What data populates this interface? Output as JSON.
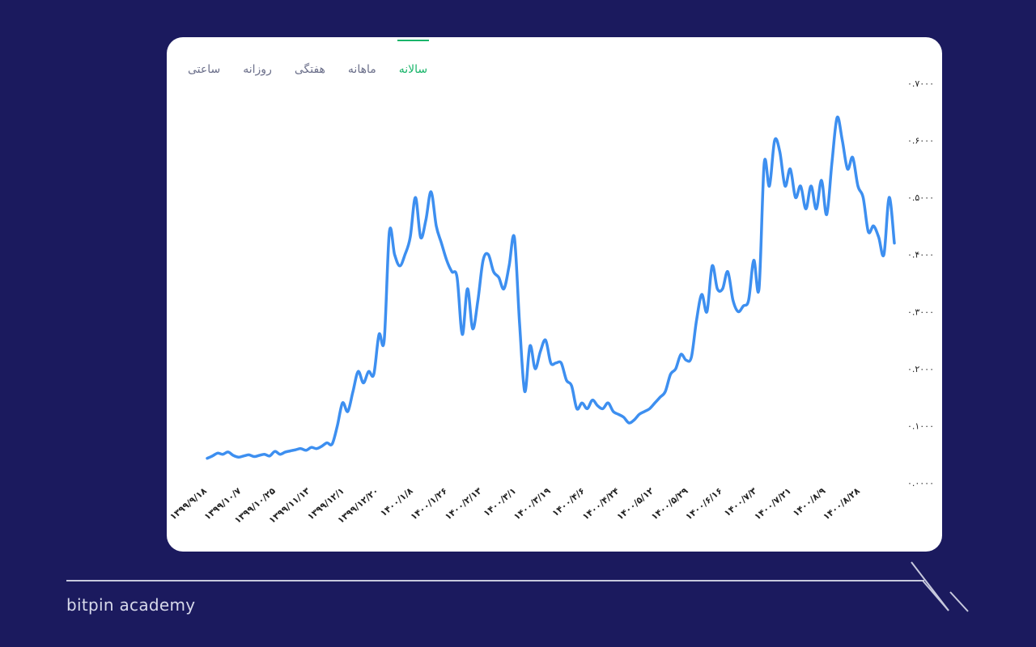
{
  "tabs": [
    {
      "label": "ساعتی",
      "active": false
    },
    {
      "label": "روزانه",
      "active": false
    },
    {
      "label": "هفتگی",
      "active": false
    },
    {
      "label": "ماهانه",
      "active": false
    },
    {
      "label": "سالانه",
      "active": true
    }
  ],
  "brand": "bitpin academy",
  "colors": {
    "background": "#1b1a5e",
    "line": "#3d8ff0",
    "accent": "#19b56a"
  },
  "chart_data": {
    "type": "line",
    "title": "",
    "xlabel": "",
    "ylabel": "",
    "ylim": [
      0,
      0.7
    ],
    "yticks": [
      0,
      0.1,
      0.2,
      0.3,
      0.4,
      0.5,
      0.6,
      0.7
    ],
    "ytick_labels": [
      "۰.۰۰۰۰",
      "۰.۱۰۰۰",
      "۰.۲۰۰۰",
      "۰.۳۰۰۰",
      "۰.۴۰۰۰",
      "۰.۵۰۰۰",
      "۰.۶۰۰۰",
      "۰.۷۰۰۰"
    ],
    "x_tick_labels": [
      "۱۳۹۹/۹/۱۸",
      "۱۳۹۹/۱۰/۷",
      "۱۳۹۹/۱۰/۲۵",
      "۱۳۹۹/۱۱/۱۳",
      "۱۳۹۹/۱۲/۱",
      "۱۳۹۹/۱۲/۲۰",
      "۱۴۰۰/۱/۸",
      "۱۴۰۰/۱/۲۶",
      "۱۴۰۰/۲/۱۳",
      "۱۴۰۰/۳/۱",
      "۱۴۰۰/۳/۱۹",
      "۱۴۰۰/۴/۶",
      "۱۴۰۰/۴/۲۴",
      "۱۴۰۰/۵/۱۲",
      "۱۴۰۰/۵/۲۹",
      "۱۴۰۰/۶/۱۶",
      "۱۴۰۰/۷/۳",
      "۱۴۰۰/۷/۲۱",
      "۱۴۰۰/۸/۹",
      "۱۴۰۰/۸/۲۸"
    ],
    "grid": false,
    "series": [
      {
        "values": [
          0.043,
          0.047,
          0.052,
          0.05,
          0.054,
          0.048,
          0.045,
          0.047,
          0.049,
          0.046,
          0.048,
          0.05,
          0.047,
          0.055,
          0.05,
          0.054,
          0.056,
          0.058,
          0.06,
          0.057,
          0.062,
          0.06,
          0.064,
          0.07,
          0.068,
          0.1,
          0.14,
          0.125,
          0.16,
          0.195,
          0.175,
          0.195,
          0.19,
          0.26,
          0.25,
          0.44,
          0.4,
          0.38,
          0.4,
          0.43,
          0.5,
          0.43,
          0.46,
          0.51,
          0.45,
          0.42,
          0.39,
          0.37,
          0.36,
          0.26,
          0.34,
          0.27,
          0.32,
          0.39,
          0.4,
          0.37,
          0.36,
          0.34,
          0.38,
          0.43,
          0.28,
          0.16,
          0.24,
          0.2,
          0.23,
          0.25,
          0.21,
          0.21,
          0.21,
          0.18,
          0.17,
          0.13,
          0.14,
          0.13,
          0.145,
          0.135,
          0.13,
          0.14,
          0.125,
          0.12,
          0.115,
          0.105,
          0.11,
          0.12,
          0.125,
          0.13,
          0.14,
          0.15,
          0.16,
          0.19,
          0.2,
          0.225,
          0.215,
          0.22,
          0.285,
          0.33,
          0.3,
          0.38,
          0.34,
          0.34,
          0.37,
          0.32,
          0.3,
          0.31,
          0.32,
          0.39,
          0.34,
          0.56,
          0.52,
          0.6,
          0.58,
          0.52,
          0.55,
          0.5,
          0.52,
          0.48,
          0.52,
          0.48,
          0.53,
          0.47,
          0.56,
          0.64,
          0.6,
          0.55,
          0.57,
          0.52,
          0.5,
          0.44,
          0.45,
          0.43,
          0.4,
          0.5,
          0.42
        ]
      }
    ]
  }
}
